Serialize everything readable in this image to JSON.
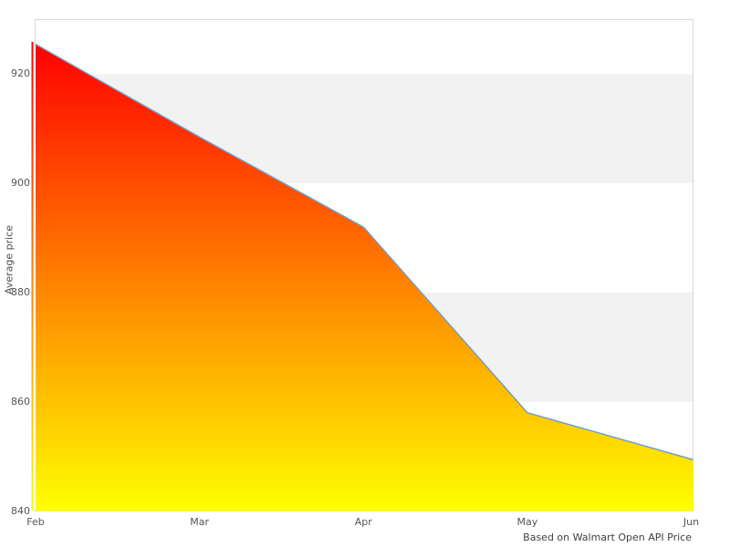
{
  "chart_data": {
    "type": "area",
    "title": "",
    "xlabel": "",
    "ylabel": "Average price",
    "caption": "Based on Walmart Open API Price",
    "categories": [
      "Feb",
      "Mar",
      "Apr",
      "May",
      "Jun"
    ],
    "series": [
      {
        "name": "Average price",
        "values": [
          925.5,
          908.5,
          892,
          858,
          849.5
        ]
      }
    ],
    "yticks": [
      840,
      860,
      880,
      900,
      920
    ],
    "ylim": [
      840,
      930
    ],
    "alternate_bands": [
      [
        900,
        920
      ],
      [
        860,
        880
      ]
    ],
    "grid": "alternate-horizontal-bands",
    "legend": "none",
    "colors": {
      "line": "#6d9ecf",
      "gradient_top": "#ff0000",
      "gradient_bottom": "#ffff00",
      "band": "#f2f2f2",
      "plot_border": "#d9d9d9",
      "tick_text": "#555555",
      "axis_title_text": "#4d4d4d",
      "caption_text": "#404040",
      "background": "#ffffff"
    }
  }
}
